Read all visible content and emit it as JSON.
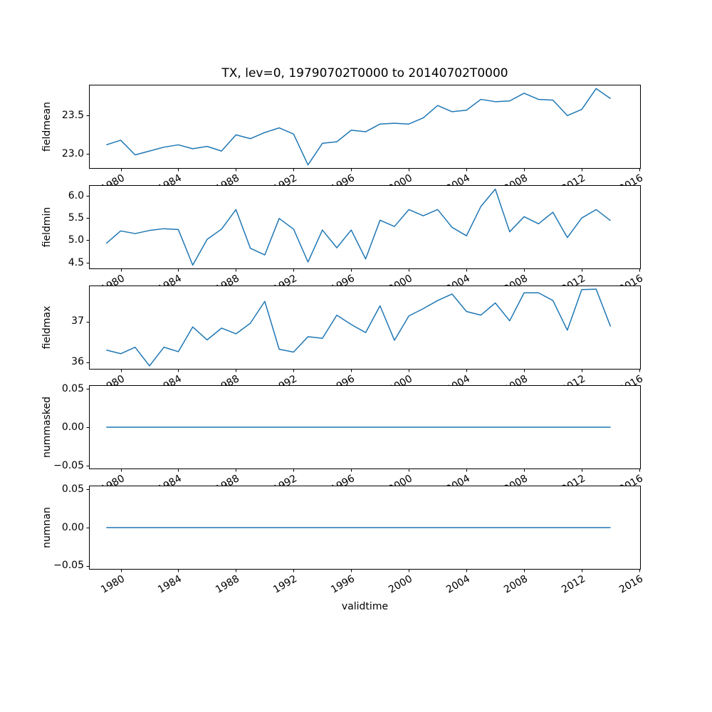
{
  "title": "TX, lev=0, 19790702T0000 to 20140702T0000",
  "xlabel": "validtime",
  "line_color": "#1f77b4",
  "frame_color": "#000000",
  "xlim": [
    1977.8,
    2016.1
  ],
  "xticks": {
    "values": [
      1980,
      1984,
      1988,
      1992,
      1996,
      2000,
      2004,
      2008,
      2012,
      2016
    ],
    "labels": [
      "1980",
      "1984",
      "1988",
      "1992",
      "1996",
      "2000",
      "2004",
      "2008",
      "2012",
      "2016"
    ]
  },
  "chart_data": [
    {
      "type": "line",
      "name": "fieldmean",
      "ylabel": "fieldmean",
      "x": [
        1979,
        1980,
        1981,
        1982,
        1983,
        1984,
        1985,
        1986,
        1987,
        1988,
        1989,
        1990,
        1991,
        1992,
        1993,
        1994,
        1995,
        1996,
        1997,
        1998,
        1999,
        2000,
        2001,
        2002,
        2003,
        2004,
        2005,
        2006,
        2007,
        2008,
        2009,
        2010,
        2011,
        2012,
        2013,
        2014
      ],
      "values": [
        23.12,
        23.18,
        22.99,
        23.04,
        23.09,
        23.12,
        23.07,
        23.1,
        23.04,
        23.25,
        23.2,
        23.28,
        23.34,
        23.26,
        22.86,
        23.14,
        23.16,
        23.31,
        23.29,
        23.39,
        23.4,
        23.39,
        23.47,
        23.63,
        23.55,
        23.57,
        23.71,
        23.68,
        23.69,
        23.79,
        23.71,
        23.7,
        23.5,
        23.58,
        23.85,
        23.72
      ],
      "ylim": [
        22.81,
        23.9
      ],
      "yticks": [
        {
          "v": 23.0,
          "label": "23.0"
        },
        {
          "v": 23.5,
          "label": "23.5"
        }
      ]
    },
    {
      "type": "line",
      "name": "fieldmin",
      "ylabel": "fieldmin",
      "x": [
        1979,
        1980,
        1981,
        1982,
        1983,
        1984,
        1985,
        1986,
        1987,
        1988,
        1989,
        1990,
        1991,
        1992,
        1993,
        1994,
        1995,
        1996,
        1997,
        1998,
        1999,
        2000,
        2001,
        2002,
        2003,
        2004,
        2005,
        2006,
        2007,
        2008,
        2009,
        2010,
        2011,
        2012,
        2013,
        2014
      ],
      "values": [
        4.93,
        5.21,
        5.15,
        5.22,
        5.26,
        5.24,
        4.44,
        5.02,
        5.25,
        5.69,
        4.82,
        4.67,
        5.49,
        5.25,
        4.51,
        5.23,
        4.83,
        5.23,
        4.58,
        5.45,
        5.31,
        5.69,
        5.55,
        5.69,
        5.29,
        5.1,
        5.76,
        6.15,
        5.19,
        5.53,
        5.37,
        5.63,
        5.06,
        5.5,
        5.69,
        5.44
      ],
      "ylim": [
        4.35,
        6.24
      ],
      "yticks": [
        {
          "v": 4.5,
          "label": "4.5"
        },
        {
          "v": 5.0,
          "label": "5.0"
        },
        {
          "v": 5.5,
          "label": "5.5"
        },
        {
          "v": 6.0,
          "label": "6.0"
        }
      ]
    },
    {
      "type": "line",
      "name": "fieldmax",
      "ylabel": "fieldmax",
      "x": [
        1979,
        1980,
        1981,
        1982,
        1983,
        1984,
        1985,
        1986,
        1987,
        1988,
        1989,
        1990,
        1991,
        1992,
        1993,
        1994,
        1995,
        1996,
        1997,
        1998,
        1999,
        2000,
        2001,
        2002,
        2003,
        2004,
        2005,
        2006,
        2007,
        2008,
        2009,
        2010,
        2011,
        2012,
        2013,
        2014
      ],
      "values": [
        36.3,
        36.21,
        36.37,
        35.91,
        36.37,
        36.26,
        36.87,
        36.55,
        36.84,
        36.7,
        36.96,
        37.5,
        36.32,
        36.25,
        36.63,
        36.59,
        37.16,
        36.93,
        36.73,
        37.39,
        36.54,
        37.14,
        37.32,
        37.52,
        37.68,
        37.25,
        37.16,
        37.46,
        37.02,
        37.71,
        37.71,
        37.52,
        36.79,
        37.79,
        37.8,
        36.88
      ],
      "ylim": [
        35.82,
        37.89
      ],
      "yticks": [
        {
          "v": 36,
          "label": "36"
        },
        {
          "v": 37,
          "label": "37"
        }
      ]
    },
    {
      "type": "line",
      "name": "nummasked",
      "ylabel": "nummasked",
      "x": [
        1979,
        1980,
        1981,
        1982,
        1983,
        1984,
        1985,
        1986,
        1987,
        1988,
        1989,
        1990,
        1991,
        1992,
        1993,
        1994,
        1995,
        1996,
        1997,
        1998,
        1999,
        2000,
        2001,
        2002,
        2003,
        2004,
        2005,
        2006,
        2007,
        2008,
        2009,
        2010,
        2011,
        2012,
        2013,
        2014
      ],
      "values": [
        0,
        0,
        0,
        0,
        0,
        0,
        0,
        0,
        0,
        0,
        0,
        0,
        0,
        0,
        0,
        0,
        0,
        0,
        0,
        0,
        0,
        0,
        0,
        0,
        0,
        0,
        0,
        0,
        0,
        0,
        0,
        0,
        0,
        0,
        0,
        0
      ],
      "ylim": [
        -0.055,
        0.055
      ],
      "yticks": [
        {
          "v": -0.05,
          "label": "−0.05"
        },
        {
          "v": 0.0,
          "label": "0.00"
        },
        {
          "v": 0.05,
          "label": "0.05"
        }
      ]
    },
    {
      "type": "line",
      "name": "numnan",
      "ylabel": "numnan",
      "x": [
        1979,
        1980,
        1981,
        1982,
        1983,
        1984,
        1985,
        1986,
        1987,
        1988,
        1989,
        1990,
        1991,
        1992,
        1993,
        1994,
        1995,
        1996,
        1997,
        1998,
        1999,
        2000,
        2001,
        2002,
        2003,
        2004,
        2005,
        2006,
        2007,
        2008,
        2009,
        2010,
        2011,
        2012,
        2013,
        2014
      ],
      "values": [
        0,
        0,
        0,
        0,
        0,
        0,
        0,
        0,
        0,
        0,
        0,
        0,
        0,
        0,
        0,
        0,
        0,
        0,
        0,
        0,
        0,
        0,
        0,
        0,
        0,
        0,
        0,
        0,
        0,
        0,
        0,
        0,
        0,
        0,
        0,
        0
      ],
      "ylim": [
        -0.055,
        0.055
      ],
      "yticks": [
        {
          "v": -0.05,
          "label": "−0.05"
        },
        {
          "v": 0.0,
          "label": "0.00"
        },
        {
          "v": 0.05,
          "label": "0.05"
        }
      ]
    }
  ]
}
